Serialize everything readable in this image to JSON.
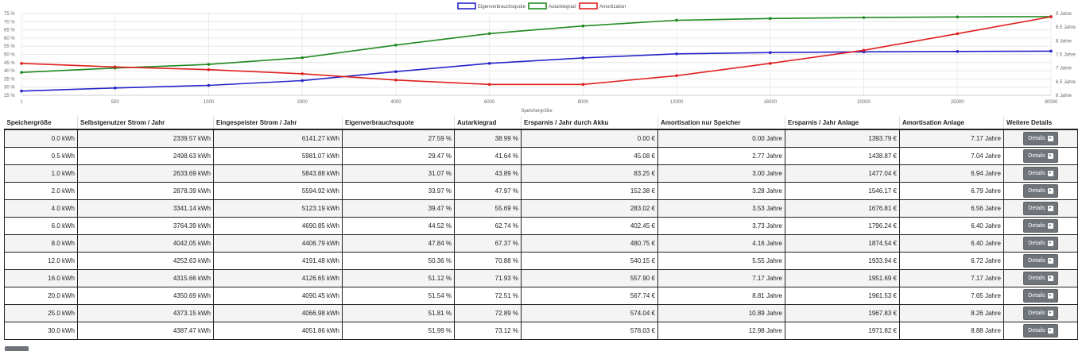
{
  "chart_data": {
    "type": "line",
    "xlabel": "Speichergröße",
    "categories": [
      "1",
      "500",
      "1000",
      "2000",
      "4000",
      "6000",
      "8000",
      "12000",
      "16000",
      "20000",
      "25000",
      "30000"
    ],
    "left_axis": {
      "ticks": [
        "25 %",
        "30 %",
        "35 %",
        "40 %",
        "45 %",
        "50 %",
        "55 %",
        "60 %",
        "65 %",
        "70 %",
        "75 %"
      ],
      "ylim": [
        25,
        75
      ]
    },
    "right_axis": {
      "ticks": [
        "6 Jahre",
        "6.5 Jahre",
        "7 Jahre",
        "7.5 Jahre",
        "8 Jahre",
        "8.5 Jahre",
        "9 Jahre"
      ],
      "ylim": [
        6,
        9
      ]
    },
    "legend_position": "top-center",
    "grid": true,
    "series": [
      {
        "name": "Eigenverbrauchsquote",
        "color": "#2424c8",
        "axis": "left",
        "values": [
          27.59,
          29.47,
          31.07,
          33.97,
          39.47,
          44.52,
          47.84,
          50.36,
          51.12,
          51.54,
          51.81,
          51.99
        ]
      },
      {
        "name": "Autarkiegrad",
        "color": "#1f8a1f",
        "axis": "left",
        "values": [
          38.99,
          41.64,
          43.89,
          47.97,
          55.69,
          62.74,
          67.37,
          70.88,
          71.93,
          72.51,
          72.89,
          73.12
        ]
      },
      {
        "name": "Amortization",
        "color": "#e01f1f",
        "axis": "right",
        "values": [
          7.17,
          7.04,
          6.94,
          6.79,
          6.56,
          6.4,
          6.4,
          6.72,
          7.17,
          7.65,
          8.26,
          8.88
        ]
      }
    ]
  },
  "table": {
    "headers": [
      "Speichergröße",
      "Selbstgenutzer Strom / Jahr",
      "Eingespeister Strom / Jahr",
      "Eigenverbrauchsquote",
      "Autarkiegrad",
      "Ersparnis / Jahr durch Akku",
      "Amortisation nur Speicher",
      "Ersparnis / Jahr Anlage",
      "Amortisation Anlage",
      "Weitere Details"
    ],
    "button_label": "Details",
    "rows": [
      [
        "0.0 kWh",
        "2339.57 kWh",
        "6141.27 kWh",
        "27.59 %",
        "38.99 %",
        "0.00 €",
        "0.00 Jahre",
        "1393.79 €",
        "7.17 Jahre"
      ],
      [
        "0.5 kWh",
        "2498.63 kWh",
        "5981.07 kWh",
        "29.47 %",
        "41.64 %",
        "45.08 €",
        "2.77 Jahre",
        "1438.87 €",
        "7.04 Jahre"
      ],
      [
        "1.0 kWh",
        "2633.69 kWh",
        "5843.88 kWh",
        "31.07 %",
        "43.89 %",
        "83.25 €",
        "3.00 Jahre",
        "1477.04 €",
        "6.94 Jahre"
      ],
      [
        "2.0 kWh",
        "2878.39 kWh",
        "5594.92 kWh",
        "33.97 %",
        "47.97 %",
        "152.38 €",
        "3.28 Jahre",
        "1546.17 €",
        "6.79 Jahre"
      ],
      [
        "4.0 kWh",
        "3341.14 kWh",
        "5123.19 kWh",
        "39.47 %",
        "55.69 %",
        "283.02 €",
        "3.53 Jahre",
        "1676.81 €",
        "6.56 Jahre"
      ],
      [
        "6.0 kWh",
        "3764.39 kWh",
        "4690.85 kWh",
        "44.52 %",
        "62.74 %",
        "402.45 €",
        "3.73 Jahre",
        "1796.24 €",
        "6.40 Jahre"
      ],
      [
        "8.0 kWh",
        "4042.05 kWh",
        "4406.79 kWh",
        "47.84 %",
        "67.37 %",
        "480.75 €",
        "4.16 Jahre",
        "1874.54 €",
        "6.40 Jahre"
      ],
      [
        "12.0 kWh",
        "4252.63 kWh",
        "4191.48 kWh",
        "50.36 %",
        "70.88 %",
        "540.15 €",
        "5.55 Jahre",
        "1933.94 €",
        "6.72 Jahre"
      ],
      [
        "16.0 kWh",
        "4315.66 kWh",
        "4126.65 kWh",
        "51.12 %",
        "71.93 %",
        "557.90 €",
        "7.17 Jahre",
        "1951.69 €",
        "7.17 Jahre"
      ],
      [
        "20.0 kWh",
        "4350.69 kWh",
        "4090.45 kWh",
        "51.54 %",
        "72.51 %",
        "567.74 €",
        "8.81 Jahre",
        "1961.53 €",
        "7.65 Jahre"
      ],
      [
        "25.0 kWh",
        "4373.15 kWh",
        "4066.98 kWh",
        "51.81 %",
        "72.89 %",
        "574.04 €",
        "10.89 Jahre",
        "1967.83 €",
        "8.26 Jahre"
      ],
      [
        "30.0 kWh",
        "4387.47 kWh",
        "4051.86 kWh",
        "51.99 %",
        "73.12 %",
        "578.03 €",
        "12.98 Jahre",
        "1971.82 €",
        "8.88 Jahre"
      ]
    ]
  }
}
